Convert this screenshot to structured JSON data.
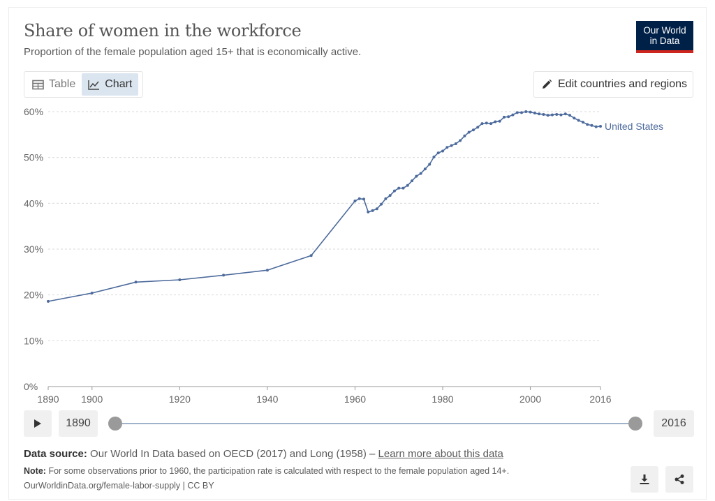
{
  "header": {
    "title": "Share of women in the workforce",
    "subtitle": "Proportion of the female population aged 15+ that is economically active.",
    "logo_line1": "Our World",
    "logo_line2": "in Data"
  },
  "tabs": [
    {
      "label": "Table",
      "icon": "table-icon",
      "active": false
    },
    {
      "label": "Chart",
      "icon": "line-chart-icon",
      "active": true
    }
  ],
  "edit_button": {
    "label": "Edit countries and regions",
    "icon": "pencil-icon"
  },
  "timeline": {
    "play_icon": "play-icon",
    "start_year": "1890",
    "end_year": "2016",
    "start_fraction": 0,
    "end_fraction": 1
  },
  "footer": {
    "source_label": "Data source:",
    "source_text": "Our World In Data based on OECD (2017) and Long (1958) –",
    "source_link": "Learn more about this data",
    "note_label": "Note:",
    "note_text": "For some observations prior to 1960, the participation rate is calculated with respect to the female population aged 14+.",
    "url": "OurWorldinData.org/female-labor-supply | CC BY",
    "download_icon": "download-icon",
    "share_icon": "share-icon"
  },
  "colors": {
    "series": "#4c6a9c",
    "logo_bg": "#002147",
    "logo_accent": "#ce261e"
  },
  "chart_data": {
    "type": "line",
    "title": "Share of women in the workforce",
    "xlabel": "",
    "ylabel": "",
    "xlim": [
      1890,
      2016
    ],
    "ylim": [
      0,
      60
    ],
    "y_ticks": [
      0,
      10,
      20,
      30,
      40,
      50,
      60
    ],
    "y_tick_labels": [
      "0%",
      "10%",
      "20%",
      "30%",
      "40%",
      "50%",
      "60%"
    ],
    "x_ticks": [
      1890,
      1900,
      1920,
      1940,
      1960,
      1980,
      2000,
      2016
    ],
    "x_tick_labels": [
      "1890",
      "1900",
      "1920",
      "1940",
      "1960",
      "1980",
      "2000",
      "2016"
    ],
    "grid": "horizontal dashed",
    "legend": "inline label at line end",
    "series": [
      {
        "name": "United States",
        "x": [
          1890,
          1900,
          1910,
          1920,
          1930,
          1940,
          1950,
          1960,
          1961,
          1962,
          1963,
          1964,
          1965,
          1966,
          1967,
          1968,
          1969,
          1970,
          1971,
          1972,
          1973,
          1974,
          1975,
          1976,
          1977,
          1978,
          1979,
          1980,
          1981,
          1982,
          1983,
          1984,
          1985,
          1986,
          1987,
          1988,
          1989,
          1990,
          1991,
          1992,
          1993,
          1994,
          1995,
          1996,
          1997,
          1998,
          1999,
          2000,
          2001,
          2002,
          2003,
          2004,
          2005,
          2006,
          2007,
          2008,
          2009,
          2010,
          2011,
          2012,
          2013,
          2014,
          2015,
          2016
        ],
        "y": [
          18.6,
          20.4,
          22.8,
          23.3,
          24.3,
          25.4,
          28.6,
          40.5,
          41.0,
          40.9,
          38.1,
          38.4,
          38.8,
          39.8,
          41.0,
          41.7,
          42.7,
          43.3,
          43.3,
          43.9,
          44.9,
          45.9,
          46.5,
          47.5,
          48.5,
          50.1,
          51.0,
          51.4,
          52.2,
          52.6,
          53.0,
          53.7,
          54.7,
          55.5,
          56.0,
          56.6,
          57.4,
          57.5,
          57.4,
          57.8,
          57.9,
          58.8,
          58.9,
          59.3,
          59.8,
          59.8,
          60.0,
          59.9,
          59.7,
          59.5,
          59.4,
          59.2,
          59.3,
          59.4,
          59.3,
          59.5,
          59.2,
          58.6,
          58.1,
          57.7,
          57.2,
          57.0,
          56.7,
          56.8
        ]
      }
    ]
  }
}
